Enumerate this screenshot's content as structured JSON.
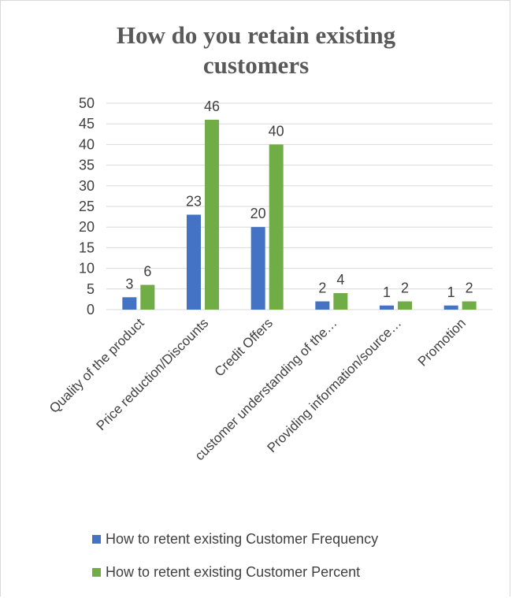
{
  "chart_data": {
    "type": "bar",
    "title": "How do you retain existing customers",
    "categories": [
      "Quality of the product",
      "Price reduction/Discounts",
      "Credit Offers",
      "customer understanding of the…",
      "Providing information/source…",
      "Promotion"
    ],
    "series": [
      {
        "name": "How to retent existing Customer Frequency",
        "values": [
          3,
          23,
          20,
          2,
          1,
          1
        ],
        "color": "#4472c4"
      },
      {
        "name": "How to retent existing Customer Percent",
        "values": [
          6,
          46,
          40,
          4,
          2,
          2
        ],
        "color": "#70ad47"
      }
    ],
    "ylim": [
      0,
      50
    ],
    "yticks": [
      "0",
      "5",
      "10",
      "15",
      "20",
      "25",
      "30",
      "35",
      "40",
      "45",
      "50"
    ],
    "grid": true,
    "legend_position": "bottom"
  }
}
